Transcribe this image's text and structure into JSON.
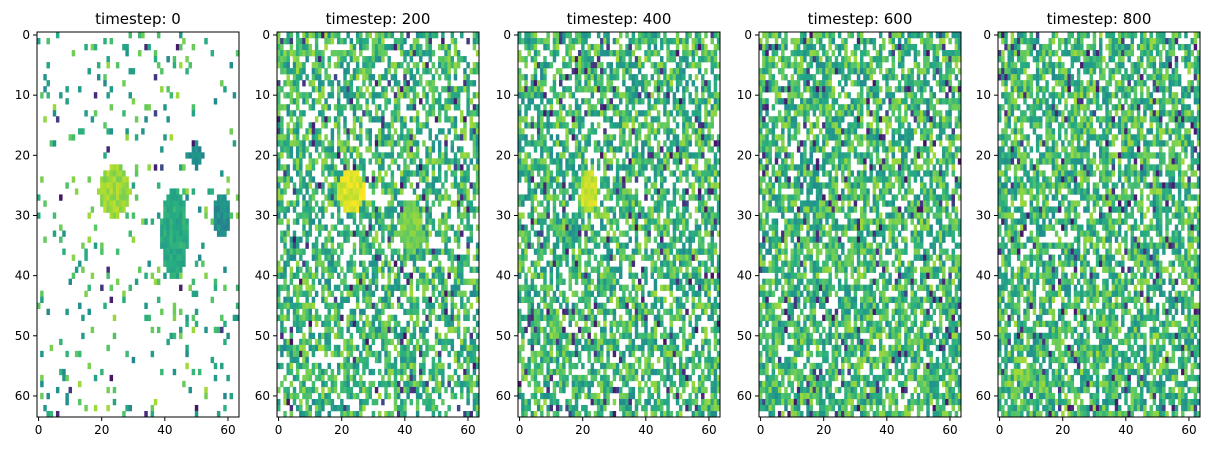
{
  "chart_data": [
    {
      "type": "heatmap",
      "title": "timestep: 0",
      "grid": false,
      "rows": 64,
      "cols": 64,
      "xticks": [
        0,
        20,
        40,
        60
      ],
      "yticks": [
        0,
        10,
        20,
        30,
        40,
        50,
        60
      ],
      "xlim": [
        -0.5,
        63.5
      ],
      "ylim": [
        63.5,
        -0.5
      ],
      "colormap": "viridis",
      "fill_fraction": 0.08,
      "blobs": [
        {
          "x": 24,
          "y": 26,
          "sx": 3.5,
          "sy": 3.0,
          "value": 0.85
        },
        {
          "x": 43,
          "y": 33,
          "sx": 3.0,
          "sy": 5.0,
          "value": 0.62
        },
        {
          "x": 50,
          "y": 20,
          "sx": 1.5,
          "sy": 1.5,
          "value": 0.5
        },
        {
          "x": 58,
          "y": 30,
          "sx": 2.0,
          "sy": 2.5,
          "value": 0.5
        }
      ]
    },
    {
      "type": "heatmap",
      "title": "timestep: 200",
      "grid": false,
      "rows": 64,
      "cols": 64,
      "xticks": [
        0,
        20,
        40,
        60
      ],
      "yticks": [
        0,
        10,
        20,
        30,
        40,
        50,
        60
      ],
      "xlim": [
        -0.5,
        63.5
      ],
      "ylim": [
        63.5,
        -0.5
      ],
      "colormap": "viridis",
      "fill_fraction": 0.6,
      "blobs": [
        {
          "x": 23,
          "y": 26,
          "sx": 3.0,
          "sy": 2.5,
          "value": 0.95
        },
        {
          "x": 42,
          "y": 32,
          "sx": 2.5,
          "sy": 3.0,
          "value": 0.8
        }
      ]
    },
    {
      "type": "heatmap",
      "title": "timestep: 400",
      "grid": false,
      "rows": 64,
      "cols": 64,
      "xticks": [
        0,
        20,
        40,
        60
      ],
      "yticks": [
        0,
        10,
        20,
        30,
        40,
        50,
        60
      ],
      "xlim": [
        -0.5,
        63.5
      ],
      "ylim": [
        63.5,
        -0.5
      ],
      "colormap": "viridis",
      "fill_fraction": 0.66,
      "blobs": [
        {
          "x": 22,
          "y": 26,
          "sx": 2.0,
          "sy": 2.5,
          "value": 0.92
        }
      ]
    },
    {
      "type": "heatmap",
      "title": "timestep: 600",
      "grid": false,
      "rows": 64,
      "cols": 64,
      "xticks": [
        0,
        20,
        40,
        60
      ],
      "yticks": [
        0,
        10,
        20,
        30,
        40,
        50,
        60
      ],
      "xlim": [
        -0.5,
        63.5
      ],
      "ylim": [
        63.5,
        -0.5
      ],
      "colormap": "viridis",
      "fill_fraction": 0.7,
      "blobs": []
    },
    {
      "type": "heatmap",
      "title": "timestep: 800",
      "grid": false,
      "rows": 64,
      "cols": 64,
      "xticks": [
        0,
        20,
        40,
        60
      ],
      "yticks": [
        0,
        10,
        20,
        30,
        40,
        50,
        60
      ],
      "xlim": [
        -0.5,
        63.5
      ],
      "ylim": [
        63.5,
        -0.5
      ],
      "colormap": "viridis",
      "fill_fraction": 0.7,
      "blobs": []
    }
  ]
}
